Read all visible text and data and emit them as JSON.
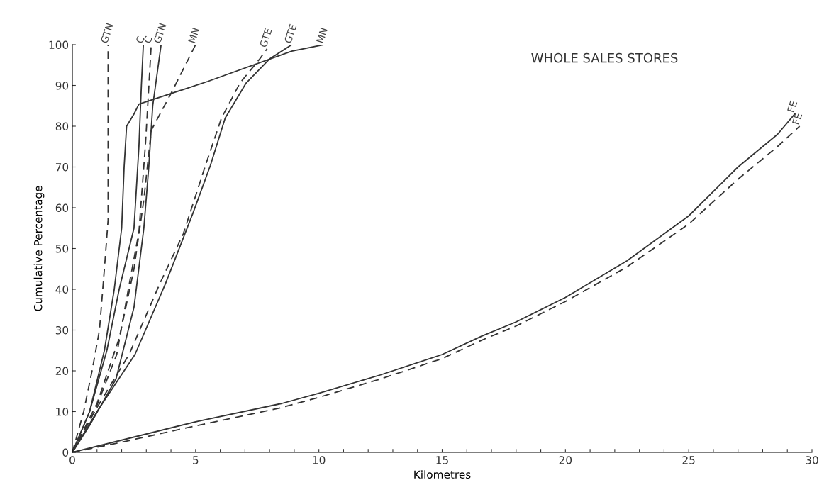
{
  "chart_data": {
    "type": "line",
    "xlabel": "Kilometres",
    "ylabel": "Cumulative Percentage",
    "annotations": [
      "WHOLE SALES STORES"
    ],
    "xlim": [
      0,
      30
    ],
    "ylim": [
      0,
      100
    ],
    "xticks": [
      0,
      {
        "value": 1,
        "label": null
      },
      {
        "value": 2,
        "label": null
      },
      {
        "value": 3,
        "label": null
      },
      {
        "value": 4,
        "label": null
      },
      5,
      {
        "value": 6,
        "label": null
      },
      {
        "value": 7,
        "label": null
      },
      {
        "value": 8,
        "label": null
      },
      {
        "value": 9,
        "label": null
      },
      10,
      {
        "value": 11,
        "label": null
      },
      {
        "value": 12,
        "label": null
      },
      {
        "value": 13,
        "label": null
      },
      {
        "value": 14,
        "label": null
      },
      15,
      {
        "value": 16,
        "label": null
      },
      {
        "value": 17,
        "label": null
      },
      {
        "value": 18,
        "label": null
      },
      {
        "value": 19,
        "label": null
      },
      20,
      {
        "value": 21,
        "label": null
      },
      {
        "value": 22,
        "label": null
      },
      {
        "value": 23,
        "label": null
      },
      {
        "value": 24,
        "label": null
      },
      25,
      {
        "value": 26,
        "label": null
      },
      {
        "value": 27,
        "label": null
      },
      {
        "value": 28,
        "label": null
      },
      {
        "value": 29,
        "label": null
      },
      30
    ],
    "yticks": [
      0,
      10,
      20,
      30,
      40,
      50,
      60,
      70,
      80,
      90,
      100
    ],
    "grid": false,
    "legend": false,
    "marker": "none",
    "series": [
      {
        "name": "GTN",
        "color": "#333333",
        "line_style": "dashed",
        "x": [
          0,
          0.46,
          0.8,
          1.1,
          1.3,
          1.45,
          1.45
        ],
        "values": [
          0,
          10,
          20,
          30,
          45,
          57,
          100
        ]
      },
      {
        "name": "C",
        "color": "#333333",
        "line_style": "solid",
        "x": [
          0,
          0.7,
          1.4,
          1.9,
          2.5,
          2.7,
          2.8,
          2.88
        ],
        "values": [
          0,
          10,
          25,
          40,
          55,
          75,
          90,
          100
        ]
      },
      {
        "name": "C",
        "color": "#333333",
        "line_style": "dashed",
        "x": [
          0,
          0.9,
          1.8,
          2.3,
          2.7,
          2.97,
          3.2
        ],
        "values": [
          0,
          10,
          24,
          41,
          54,
          76,
          100
        ]
      },
      {
        "name": "GTN",
        "color": "#333333",
        "line_style": "solid",
        "x": [
          0,
          0.7,
          1.77,
          2.5,
          2.9,
          3.1,
          3.26,
          3.6
        ],
        "values": [
          0,
          6.6,
          18,
          35.6,
          55,
          70,
          85,
          100
        ]
      },
      {
        "name": "MN",
        "color": "#333333",
        "line_style": "dashed",
        "x": [
          0,
          1.0,
          1.9,
          2.5,
          2.9,
          3.2,
          4.0,
          5.0
        ],
        "values": [
          0,
          12,
          28,
          45,
          62,
          79,
          88,
          100
        ]
      },
      {
        "name": "GTE",
        "color": "#333333",
        "line_style": "dashed",
        "x": [
          0,
          0.9,
          2.3,
          3.55,
          4.5,
          5.4,
          6.05,
          6.8,
          7.6,
          7.9
        ],
        "values": [
          0,
          10,
          24,
          41.4,
          53.6,
          70.4,
          82,
          90.6,
          96.5,
          99
        ]
      },
      {
        "name": "GTE",
        "color": "#333333",
        "line_style": "solid",
        "x": [
          0,
          1.0,
          2.54,
          3.78,
          4.9,
          5.6,
          6.2,
          7.05,
          8.0,
          8.9
        ],
        "values": [
          0,
          10,
          24,
          41.4,
          58.8,
          70.4,
          82,
          90.6,
          96.5,
          100
        ]
      },
      {
        "name": "MN",
        "color": "#333333",
        "line_style": "solid",
        "x": [
          0,
          0.7,
          1.3,
          1.7,
          2.0,
          2.1,
          2.2,
          2.5,
          2.7,
          5.5,
          8.9,
          10.2
        ],
        "values": [
          0,
          10,
          25,
          40,
          55,
          70,
          80,
          83,
          85.4,
          91,
          98.4,
          100
        ]
      },
      {
        "name": "FE",
        "color": "#333333",
        "line_style": "solid",
        "x": [
          0,
          2,
          5,
          8.5,
          10,
          12.5,
          15,
          16.6,
          18,
          20,
          22.5,
          25,
          27,
          28.6,
          29.3
        ],
        "values": [
          0,
          3,
          7.5,
          12,
          14.5,
          19,
          24,
          28.5,
          32,
          38,
          47,
          58,
          70,
          78,
          83
        ]
      },
      {
        "name": "FE",
        "color": "#333333",
        "line_style": "dashed",
        "x": [
          0,
          2,
          5,
          8.5,
          10,
          12.5,
          15,
          16.6,
          18,
          20,
          22.5,
          25,
          27,
          28.6,
          29.5
        ],
        "values": [
          0,
          2.5,
          6.5,
          11,
          13.5,
          18,
          23,
          27.5,
          31,
          37,
          45.5,
          56,
          67,
          75,
          80
        ]
      }
    ]
  }
}
